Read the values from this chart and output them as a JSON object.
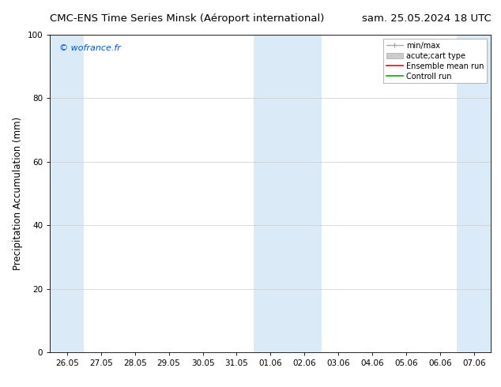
{
  "title_left": "CMC-ENS Time Series Minsk (Aéroport international)",
  "title_right": "sam. 25.05.2024 18 UTC",
  "ylabel": "Precipitation Accumulation (mm)",
  "ylim": [
    0,
    100
  ],
  "yticks": [
    0,
    20,
    40,
    60,
    80,
    100
  ],
  "background_color": "#ffffff",
  "plot_bg_color": "#ffffff",
  "watermark": "© wofrance.fr",
  "watermark_color": "#0055cc",
  "x_tick_labels": [
    "26.05",
    "27.05",
    "28.05",
    "29.05",
    "30.05",
    "31.05",
    "01.06",
    "02.06",
    "03.06",
    "04.06",
    "05.06",
    "06.06",
    "07.06"
  ],
  "shaded_regions": [
    {
      "xmin": 0,
      "xmax": 1,
      "color": "#daeaf7"
    },
    {
      "xmin": 6,
      "xmax": 8,
      "color": "#daeaf7"
    },
    {
      "xmin": 12,
      "xmax": 13,
      "color": "#daeaf7"
    }
  ],
  "grid_color": "#cccccc",
  "spine_color": "#000000",
  "title_fontsize": 9.5,
  "tick_fontsize": 7.5,
  "ylabel_fontsize": 8.5,
  "watermark_fontsize": 8,
  "legend_fontsize": 7,
  "legend_minmax_color": "#aaaaaa",
  "legend_acute_color": "#cccccc",
  "legend_ens_color": "#ff0000",
  "legend_ctrl_color": "#00aa00"
}
